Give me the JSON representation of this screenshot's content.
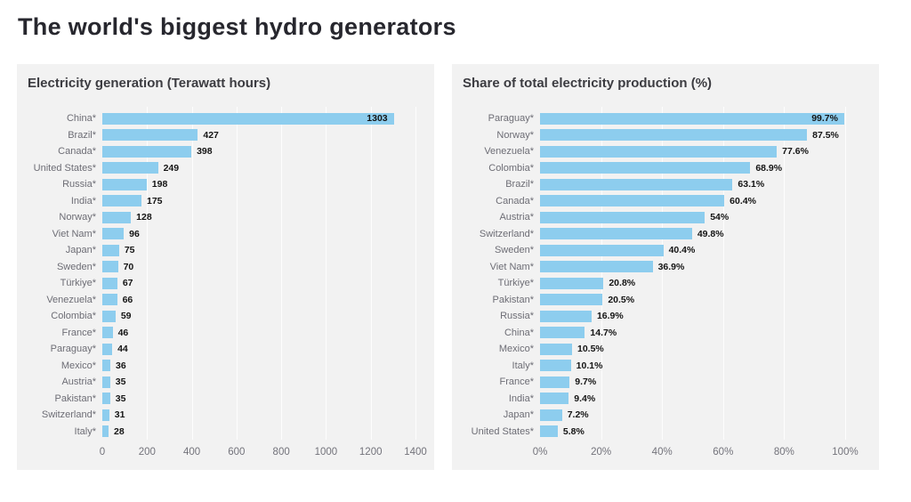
{
  "page": {
    "title": "The world's biggest hydro generators"
  },
  "colors": {
    "panel_background": "#f2f2f2",
    "bar": "#8dcdee",
    "title_text": "#27272e",
    "value_text": "#141414",
    "label_text": "#6d6d75"
  },
  "chart_data": [
    {
      "type": "bar",
      "orientation": "horizontal",
      "title": "Electricity generation (Terawatt hours)",
      "categories": [
        "China*",
        "Brazil*",
        "Canada*",
        "United States*",
        "Russia*",
        "India*",
        "Norway*",
        "Viet Nam*",
        "Japan*",
        "Sweden*",
        "Türkiye*",
        "Venezuela*",
        "Colombia*",
        "France*",
        "Paraguay*",
        "Mexico*",
        "Austria*",
        "Pakistan*",
        "Switzerland*",
        "Italy*"
      ],
      "values": [
        1303,
        427,
        398,
        249,
        198,
        175,
        128,
        96,
        75,
        70,
        67,
        66,
        59,
        46,
        44,
        36,
        35,
        35,
        31,
        28
      ],
      "value_labels": [
        "1303",
        "427",
        "398",
        "249",
        "198",
        "175",
        "128",
        "96",
        "75",
        "70",
        "67",
        "66",
        "59",
        "46",
        "44",
        "36",
        "35",
        "35",
        "31",
        "28"
      ],
      "xlim": [
        0,
        1400
      ],
      "x_ticks": [
        0,
        200,
        400,
        600,
        800,
        1000,
        1200,
        1400
      ],
      "x_tick_labels": [
        "0",
        "200",
        "400",
        "600",
        "800",
        "1000",
        "1200",
        "1400"
      ],
      "bar_color": "#8dcdee",
      "grid": true,
      "legend": "none"
    },
    {
      "type": "bar",
      "orientation": "horizontal",
      "title": "Share of total electricity production (%)",
      "categories": [
        "Paraguay*",
        "Norway*",
        "Venezuela*",
        "Colombia*",
        "Brazil*",
        "Canada*",
        "Austria*",
        "Switzerland*",
        "Sweden*",
        "Viet Nam*",
        "Türkiye*",
        "Pakistan*",
        "Russia*",
        "China*",
        "Mexico*",
        "Italy*",
        "France*",
        "India*",
        "Japan*",
        "United States*"
      ],
      "values": [
        99.7,
        87.5,
        77.6,
        68.9,
        63.1,
        60.4,
        54,
        49.8,
        40.4,
        36.9,
        20.8,
        20.5,
        16.9,
        14.7,
        10.5,
        10.1,
        9.7,
        9.4,
        7.2,
        5.8
      ],
      "value_labels": [
        "99.7%",
        "87.5%",
        "77.6%",
        "68.9%",
        "63.1%",
        "60.4%",
        "54%",
        "49.8%",
        "40.4%",
        "36.9%",
        "20.8%",
        "20.5%",
        "16.9%",
        "14.7%",
        "10.5%",
        "10.1%",
        "9.7%",
        "9.4%",
        "7.2%",
        "5.8%"
      ],
      "xlim": [
        0,
        100
      ],
      "x_ticks": [
        0,
        20,
        40,
        60,
        80,
        100
      ],
      "x_tick_labels": [
        "0%",
        "20%",
        "40%",
        "60%",
        "80%",
        "100%"
      ],
      "bar_color": "#8dcdee",
      "grid": true,
      "legend": "none"
    }
  ]
}
